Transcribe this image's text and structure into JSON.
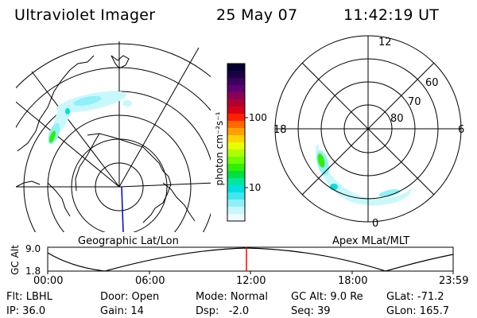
{
  "header": {
    "instrument": "Ultraviolet Imager",
    "date": "25 May 07",
    "time": "11:42:19 UT"
  },
  "geo_panel": {
    "label": "Geographic Lat/Lon"
  },
  "polar_panel": {
    "label": "Apex MLat/MLT",
    "mlt_labels": [
      "12",
      "18",
      "6",
      "0"
    ],
    "lat_labels": [
      "60",
      "70",
      "80"
    ]
  },
  "colorbar": {
    "unit_label": "photon cm⁻²s⁻¹",
    "ticks": [
      "100",
      "10"
    ],
    "colors": [
      "#000033",
      "#1a0040",
      "#3c0060",
      "#600070",
      "#8a0058",
      "#b00030",
      "#d80018",
      "#ff2000",
      "#ff6a00",
      "#ffa000",
      "#ffd400",
      "#e8ff00",
      "#b0ff00",
      "#70ff00",
      "#30f000",
      "#00e040",
      "#00e8a0",
      "#00e0e0",
      "#40e8f0",
      "#90f0f8",
      "#c8f8fc",
      "#eefcff"
    ]
  },
  "altitude_strip": {
    "axis_title": "GC Alt",
    "y_ticks": [
      "9.0",
      "1.8"
    ],
    "x_ticks": [
      "00:00",
      "06:00",
      "12:00",
      "18:00",
      "23:59"
    ],
    "current_marker_time": "12:00",
    "marker_color": "#ff0000"
  },
  "footer": {
    "rows": [
      [
        "Flt: LBHL",
        "Door: Open",
        "Mode: Normal",
        "GC Alt: 9.0 Re",
        "GLat: -71.2"
      ],
      [
        "IP: 36.0",
        "Gain: 14",
        "Dsp:   -2.0",
        "Seq: 39",
        "GLon: 165.7"
      ]
    ]
  }
}
